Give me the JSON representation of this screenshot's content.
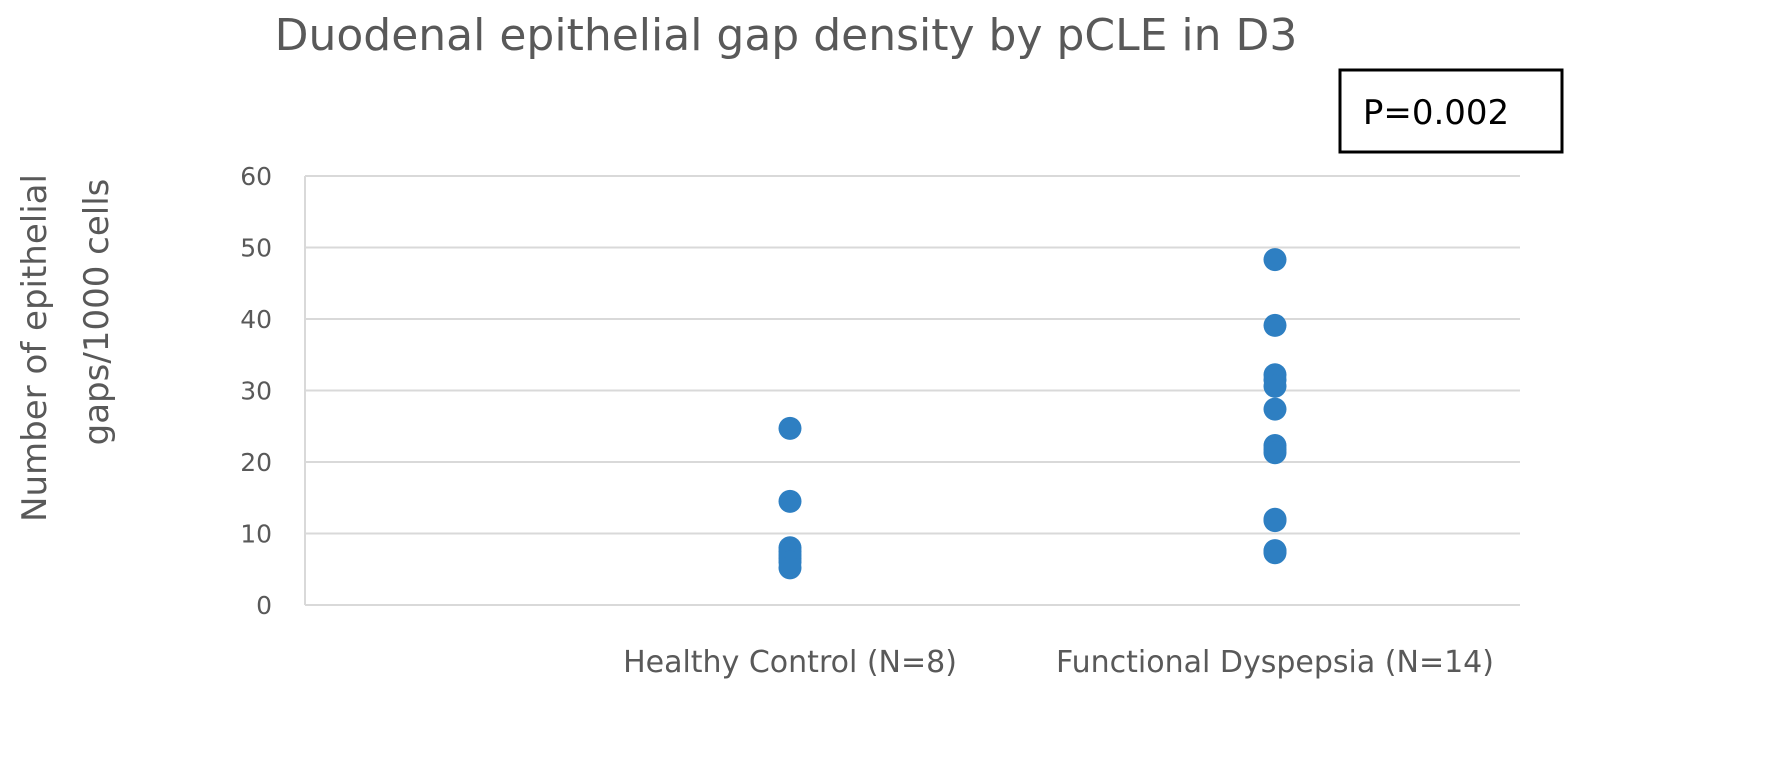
{
  "chart_data": {
    "type": "scatter",
    "title": "Duodenal epithelial gap density by pCLE in D3",
    "ylabel_lines": [
      "Number of epithelial",
      "gaps/1000 cells"
    ],
    "xlabel": "",
    "ylim": [
      0,
      60
    ],
    "yticks": [
      0,
      10,
      20,
      30,
      40,
      50,
      60
    ],
    "grid": true,
    "legend": "none",
    "annotation": "P=0.002",
    "marker_color": "#2e7fc2",
    "categories": [
      "Healthy Control  (N=8)",
      "Functional Dyspepsia (N=14)"
    ],
    "series": [
      {
        "category_index": 0,
        "values": [
          24.7,
          14.5,
          8.0,
          7.5,
          7.0,
          6.5,
          6.0,
          5.2
        ]
      },
      {
        "category_index": 1,
        "values": [
          48.3,
          39.1,
          32.2,
          31.5,
          30.6,
          27.4,
          22.3,
          21.8,
          21.3,
          12.0,
          11.8,
          7.5,
          7.3,
          7.6
        ]
      }
    ]
  }
}
